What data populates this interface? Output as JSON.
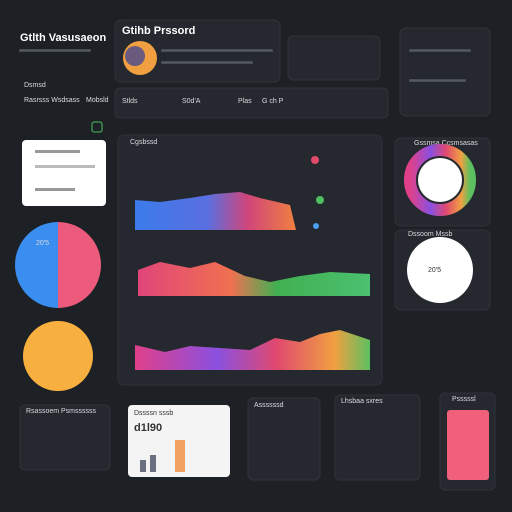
{
  "header": {
    "title": "Gtlth Vasusaeon",
    "profile_title": "Gtihb Prssord"
  },
  "sidebar": {
    "items": [
      "Dsmsd",
      "Rasrsss Wsdsass",
      "Mobsld"
    ]
  },
  "stats": [
    "Stlds",
    "S0d'A",
    "Plas",
    "G ch P"
  ],
  "panels": {
    "trend_title": "Cgsbssd",
    "right_top_title": "Gssmsa Ccsmsasas",
    "right_mid_title": "Dssoom Mssb",
    "right_circle_value": "20'5",
    "left_pie_value": "20'5",
    "left_bottom_title": "Rsassoem Psmssssss",
    "card_value": "d1l90",
    "card_title": "Dssssn sssb",
    "bottom_mid_title": "Assssssd",
    "bottom_right_title": "Lhsbaa sxres",
    "pink_title": "Psssssl"
  }
}
